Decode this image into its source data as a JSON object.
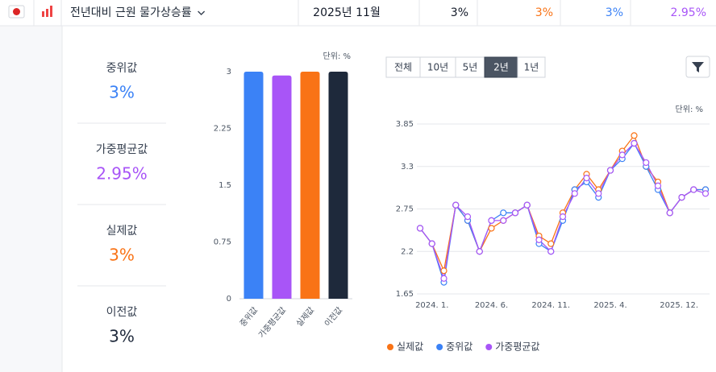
{
  "header": {
    "title": "전년대비 근원 물가상승률",
    "cells": [
      {
        "text": "2025년 11월",
        "color": "#111827"
      },
      {
        "text": "3%",
        "color": "#111827"
      },
      {
        "text": "3%",
        "color": "#f97316"
      },
      {
        "text": "3%",
        "color": "#3b82f6"
      },
      {
        "text": "2.95%",
        "color": "#a855f7"
      }
    ]
  },
  "stats": [
    {
      "label": "중위값",
      "value": "3%",
      "color": "#3b82f6"
    },
    {
      "label": "가중평균값",
      "value": "2.95%",
      "color": "#a855f7"
    },
    {
      "label": "실제값",
      "value": "3%",
      "color": "#f97316"
    },
    {
      "label": "이전값",
      "value": "3%",
      "color": "#1e293b"
    }
  ],
  "range_buttons": [
    "전체",
    "10년",
    "5년",
    "2년",
    "1년"
  ],
  "selected_range": "2년",
  "chart_data": [
    {
      "type": "bar",
      "unit": "단위: %",
      "categories": [
        "중위값",
        "가중평균값",
        "실제값",
        "이전값"
      ],
      "values": [
        3,
        2.95,
        3,
        3
      ],
      "colors": [
        "#3b82f6",
        "#a855f7",
        "#f97316",
        "#1e293b"
      ],
      "ylim": [
        0,
        3
      ],
      "yticks": [
        0,
        0.75,
        1.5,
        2.25,
        3
      ]
    },
    {
      "type": "line",
      "unit": "단위: %",
      "categories": [
        null,
        "2024. 1.",
        null,
        null,
        null,
        null,
        "2024. 6.",
        null,
        null,
        null,
        null,
        "2024. 11.",
        null,
        null,
        null,
        null,
        "2025. 4.",
        null,
        null,
        null,
        null,
        null,
        null,
        null,
        "2025. 12."
      ],
      "series": [
        {
          "name": "실제값",
          "color": "#f97316",
          "values": [
            2.5,
            2.3,
            1.95,
            2.8,
            2.6,
            2.2,
            2.5,
            2.6,
            2.7,
            2.8,
            2.4,
            2.3,
            2.7,
            3.0,
            3.2,
            3.0,
            3.25,
            3.5,
            3.7,
            3.3,
            3.1,
            2.7,
            2.9,
            3.0,
            3.0
          ]
        },
        {
          "name": "중위값",
          "color": "#3b82f6",
          "values": [
            2.5,
            2.3,
            1.8,
            2.8,
            2.6,
            2.2,
            2.6,
            2.7,
            2.7,
            2.8,
            2.3,
            2.2,
            2.6,
            3.0,
            3.1,
            2.9,
            3.25,
            3.4,
            3.6,
            3.3,
            3.0,
            2.7,
            2.9,
            3.0,
            3.0
          ]
        },
        {
          "name": "가중평균값",
          "color": "#a855f7",
          "values": [
            2.5,
            2.3,
            1.85,
            2.8,
            2.65,
            2.2,
            2.6,
            2.6,
            2.7,
            2.8,
            2.35,
            2.2,
            2.65,
            2.95,
            3.15,
            2.95,
            3.25,
            3.45,
            3.6,
            3.35,
            3.05,
            2.7,
            2.9,
            3.0,
            2.95
          ]
        }
      ],
      "ylim": [
        1.65,
        3.85
      ],
      "yticks": [
        1.65,
        2.2,
        2.75,
        3.3,
        3.85
      ],
      "grid": true
    }
  ]
}
